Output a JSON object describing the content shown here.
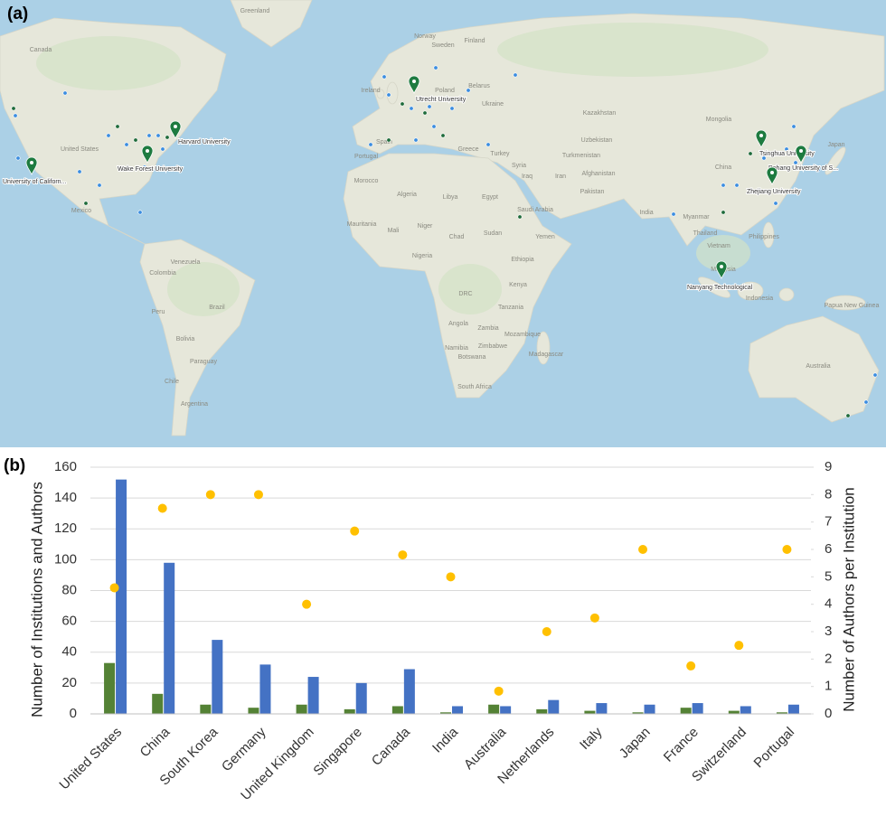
{
  "map": {
    "panel_label": "(a)",
    "universities": [
      "Harvard University",
      "Wake Forest University",
      "University of Californ...",
      "Utrecht University",
      "Tsinghua University",
      "Pohang University of S...",
      "Zhejiang University",
      "Nanyang Technological"
    ],
    "place_names": [
      "Greenland",
      "Canada",
      "United States",
      "Mexico",
      "Venezuela",
      "Colombia",
      "Peru",
      "Brazil",
      "Bolivia",
      "Paraguay",
      "Chile",
      "Argentina",
      "Morocco",
      "Algeria",
      "Libya",
      "Egypt",
      "Mauritania",
      "Mali",
      "Niger",
      "Chad",
      "Sudan",
      "Nigeria",
      "Ethiopia",
      "DRC",
      "Kenya",
      "Tanzania",
      "Angola",
      "Zambia",
      "Mozambique",
      "Namibia",
      "Zimbabwe",
      "Botswana",
      "Madagascar",
      "South Africa",
      "Saudi Arabia",
      "Yemen",
      "Iran",
      "Iraq",
      "Turkey",
      "Syria",
      "Afghanistan",
      "Pakistan",
      "India",
      "Kazakhstan",
      "Uzbekistan",
      "Turkmenistan",
      "Mongolia",
      "China",
      "Myanmar",
      "Thailand",
      "Vietnam",
      "Philippines",
      "Malaysia",
      "Indonesia",
      "Papua New Guinea",
      "Australia",
      "Japan",
      "Spain",
      "Portugal",
      "Greece",
      "Ukraine",
      "Poland",
      "Belarus",
      "Sweden",
      "Finland",
      "Norway",
      "Ireland"
    ]
  },
  "chart_data": {
    "type": "bar",
    "panel_label": "(b)",
    "y_label": "Number of Institutions and Authors",
    "y2_label": "Number of Authors per Institution",
    "categories": [
      "United States",
      "China",
      "South Korea",
      "Germany",
      "United Kingdom",
      "Singapore",
      "Canada",
      "India",
      "Australia",
      "Netherlands",
      "Italy",
      "Japan",
      "France",
      "Switzerland",
      "Portugal"
    ],
    "series": [
      {
        "type": "bar",
        "color": "#548235",
        "values": [
          33,
          13,
          6,
          4,
          6,
          3,
          5,
          1,
          6,
          3,
          2,
          1,
          4,
          2,
          1
        ]
      },
      {
        "type": "bar",
        "color": "#4472c4",
        "values": [
          152,
          98,
          48,
          32,
          24,
          20,
          29,
          5,
          5,
          9,
          7,
          6,
          7,
          5,
          6
        ]
      },
      {
        "type": "scatter",
        "axis": "y2",
        "color": "#ffc000",
        "values": [
          4.6,
          7.5,
          8,
          8,
          4,
          6.67,
          5.8,
          5,
          0.83,
          3,
          3.5,
          6,
          1.75,
          2.5,
          6
        ]
      }
    ],
    "ylim": [
      0,
      160
    ],
    "yticks": [
      0,
      20,
      40,
      60,
      80,
      100,
      120,
      140,
      160
    ],
    "y2lim": [
      0,
      9
    ],
    "y2ticks": [
      0,
      1,
      2,
      3,
      4,
      5,
      6,
      7,
      8,
      9
    ],
    "grid": true
  }
}
